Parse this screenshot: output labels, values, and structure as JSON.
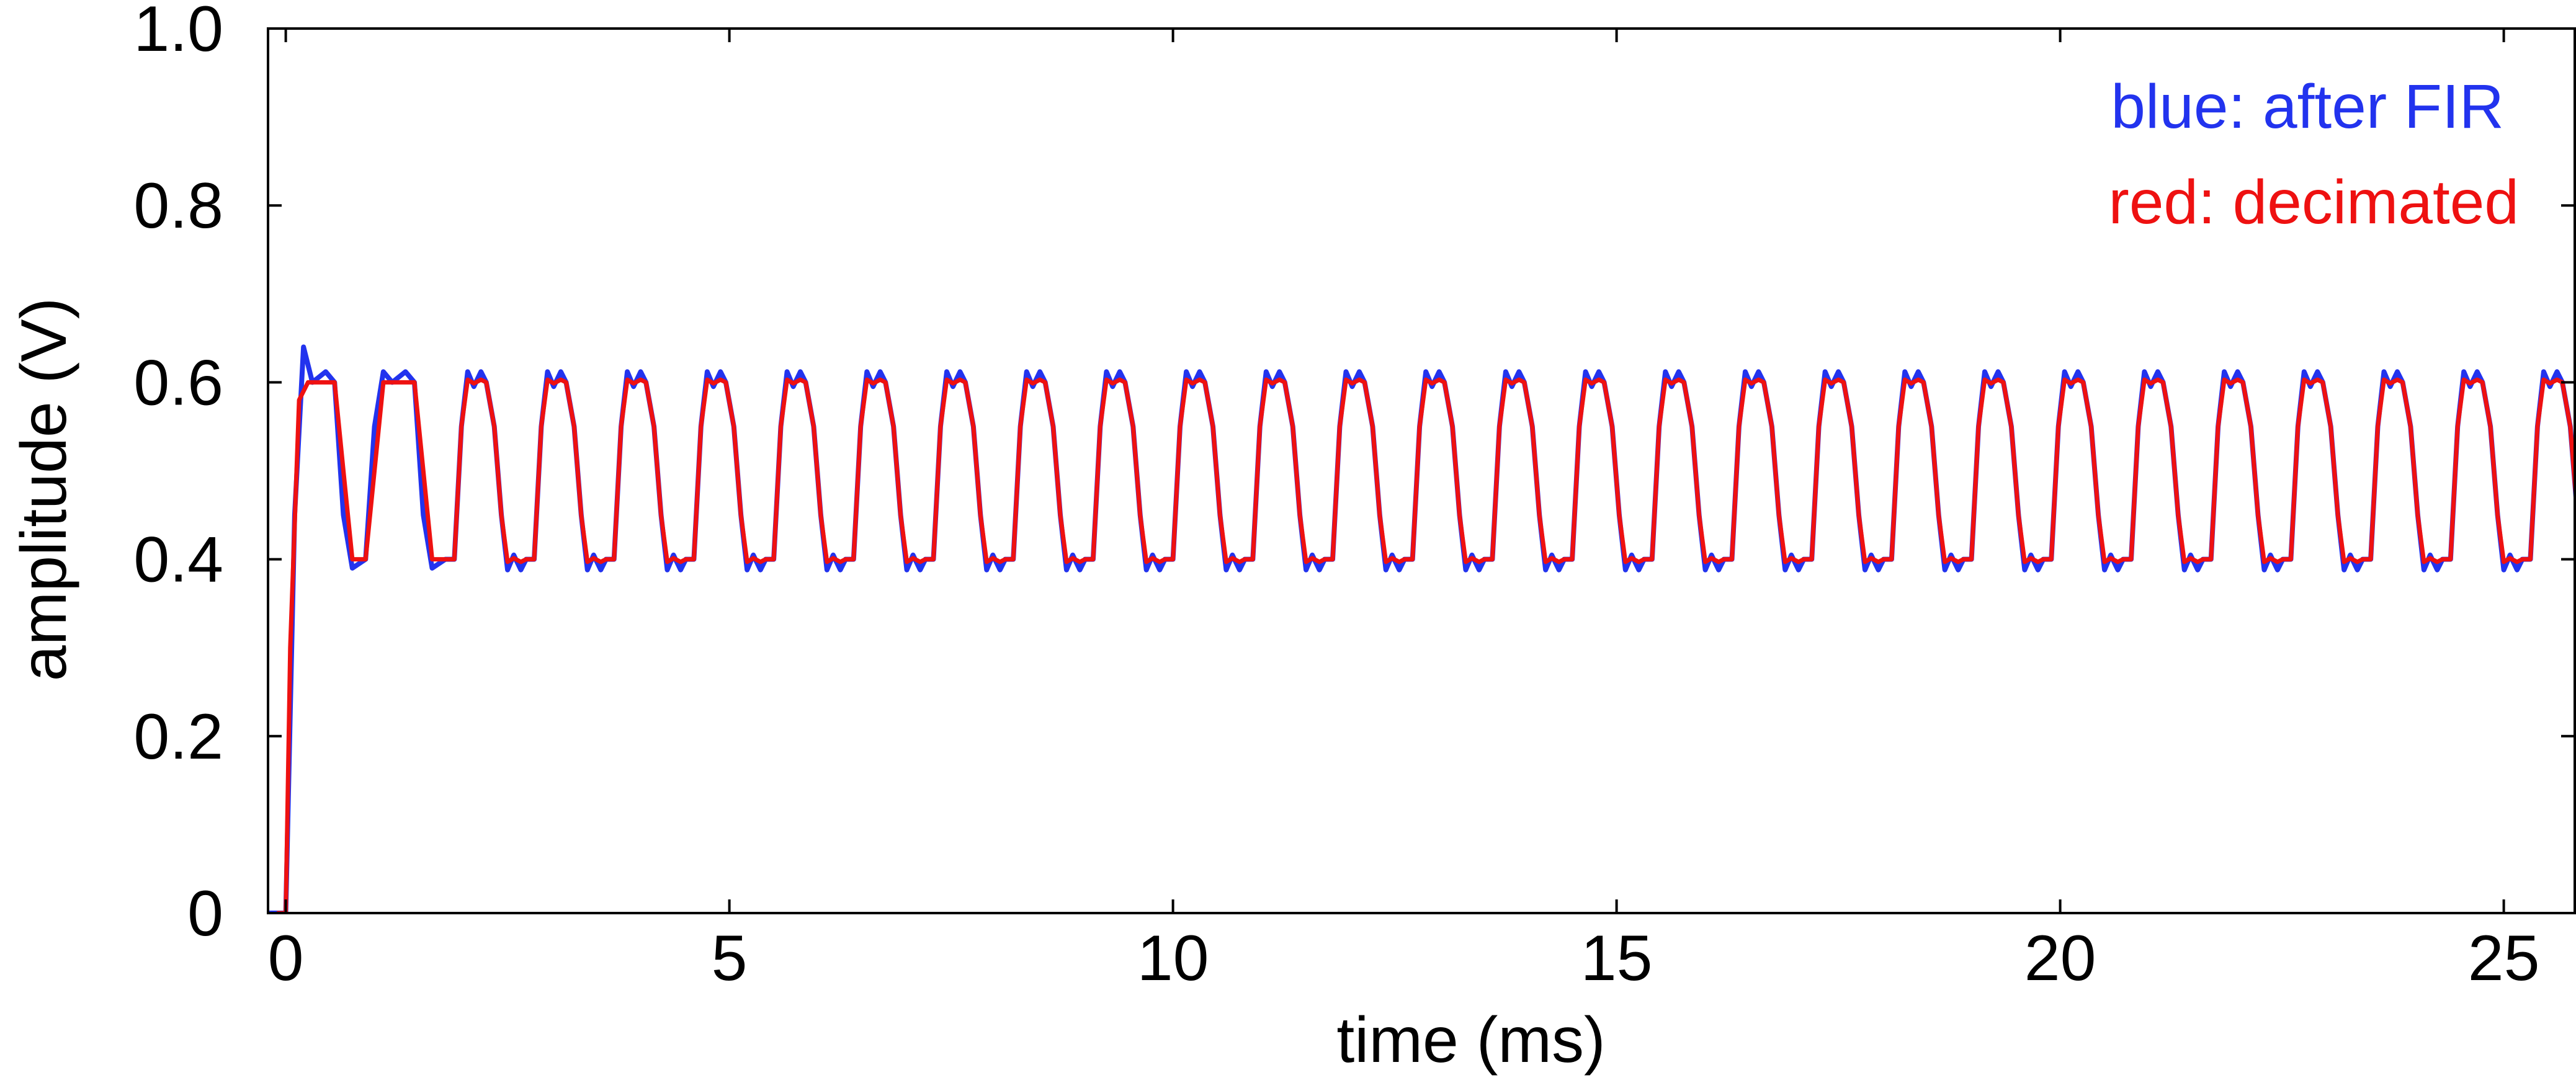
{
  "chart_data": {
    "type": "line",
    "xlabel": "time (ms)",
    "ylabel": "amplitude (V)",
    "xlim": [
      -0.2,
      25.8
    ],
    "ylim": [
      0,
      1.0
    ],
    "x_ticks": [
      0,
      5,
      10,
      15,
      20,
      25
    ],
    "x_tick_labels": [
      "0",
      "5",
      "10",
      "15",
      "20",
      "25"
    ],
    "y_ticks": [
      0,
      0.2,
      0.4,
      0.6,
      0.8,
      1.0
    ],
    "y_tick_labels": [
      "0",
      "0.2",
      "0.4",
      "0.6",
      "0.8",
      "1.0"
    ],
    "grid": false,
    "legend_placement": "top-right",
    "annotations": [
      {
        "text": "blue: after FIR",
        "color": "#2233ee"
      },
      {
        "text": "red: decimated",
        "color": "#ee1111"
      }
    ],
    "waveform": {
      "start_ms": 0.0,
      "period_ms": 0.9,
      "high_level": 0.6,
      "low_level": 0.4,
      "duty_high": 0.5,
      "end_ms": 25.8
    },
    "series": [
      {
        "color": "#2233ee",
        "overshoot": 0.012,
        "initial_peak": 0.64,
        "x": [
          -0.2,
          -0.1,
          0.0,
          0.1,
          0.2,
          0.3,
          0.45,
          0.55,
          0.65,
          0.75,
          0.9,
          1.0,
          1.1,
          1.2,
          1.35,
          1.45,
          1.55,
          1.65,
          1.8
        ],
        "y": [
          0.0,
          0.0,
          0.0,
          0.45,
          0.64,
          0.6,
          0.612,
          0.6,
          0.45,
          0.39,
          0.4,
          0.55,
          0.612,
          0.6,
          0.612,
          0.6,
          0.45,
          0.39,
          0.4
        ]
      },
      {
        "color": "#ee1111",
        "overshoot": 0.003,
        "x": [
          -0.1,
          0.0,
          0.05,
          0.15,
          0.25,
          0.45,
          0.55,
          0.65,
          0.75,
          0.9,
          1.0,
          1.1,
          1.2,
          1.35,
          1.45,
          1.55,
          1.65,
          1.8
        ],
        "y": [
          0.0,
          0.0,
          0.3,
          0.58,
          0.6,
          0.6,
          0.6,
          0.5,
          0.4,
          0.4,
          0.5,
          0.6,
          0.6,
          0.6,
          0.6,
          0.5,
          0.4,
          0.4
        ]
      }
    ]
  }
}
